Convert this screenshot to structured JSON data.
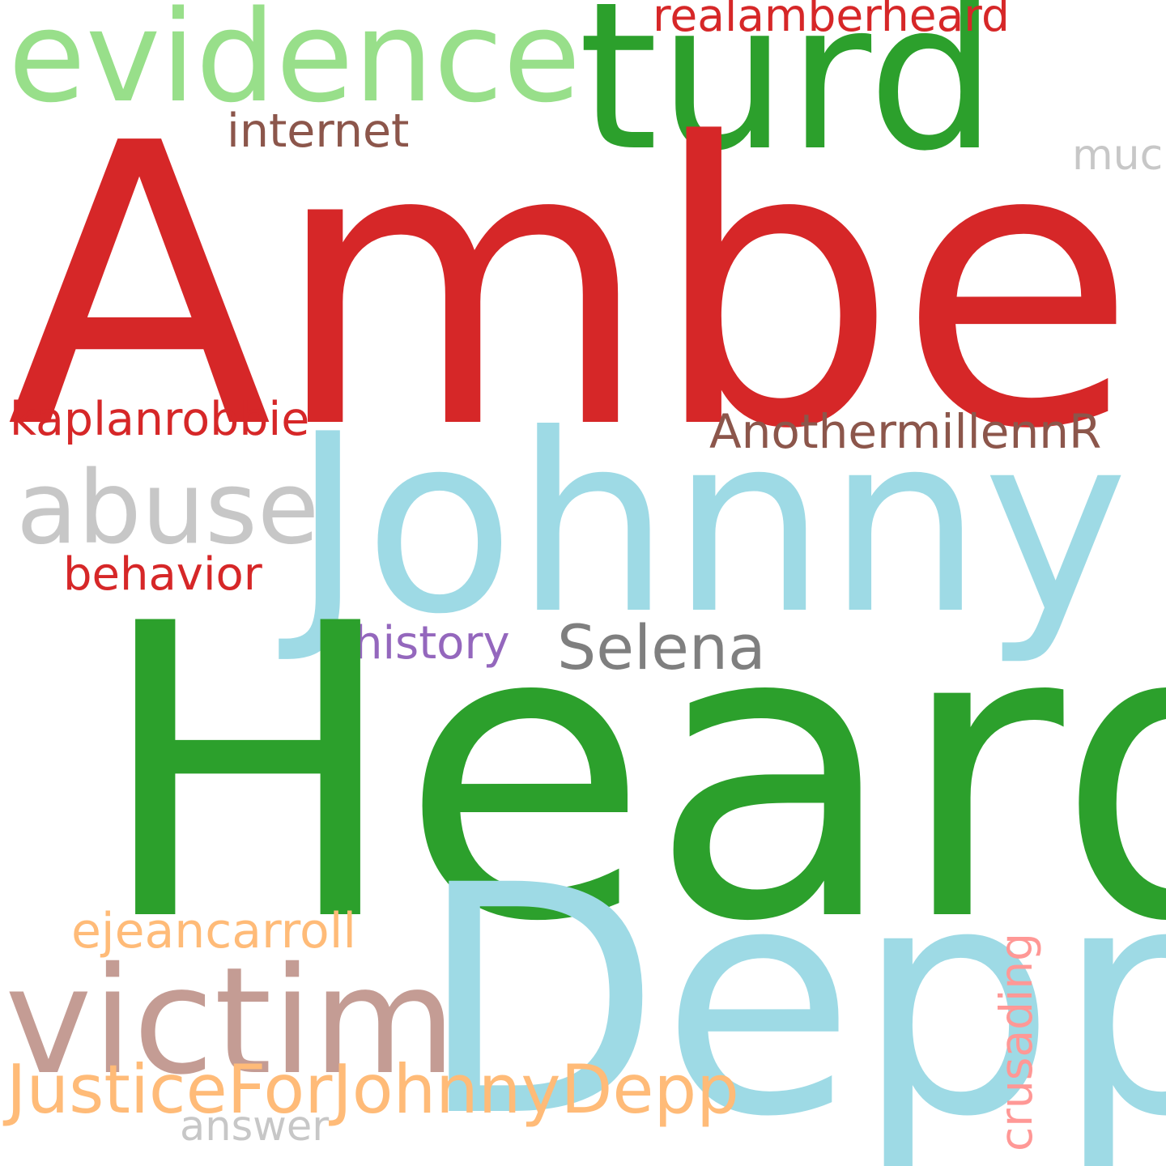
{
  "words": [
    {
      "id": "amber",
      "text": "Amber",
      "color": "#d62728"
    },
    {
      "id": "heard",
      "text": "Heard",
      "color": "#2ca02c"
    },
    {
      "id": "johnny",
      "text": "Johnny",
      "color": "#9edae5"
    },
    {
      "id": "depp",
      "text": "Depp",
      "color": "#9edae5"
    },
    {
      "id": "turd",
      "text": "turd",
      "color": "#2ca02c"
    },
    {
      "id": "evidence",
      "text": "evidence",
      "color": "#98df8a"
    },
    {
      "id": "victim",
      "text": "victim",
      "color": "#c49c94"
    },
    {
      "id": "abuse",
      "text": "abuse",
      "color": "#c7c7c7"
    },
    {
      "id": "justice",
      "text": "JusticeForJohnnyDepp",
      "color": "#ffbb78"
    },
    {
      "id": "selena",
      "text": "Selena",
      "color": "#7f7f7f"
    },
    {
      "id": "ejean",
      "text": "ejeancarroll",
      "color": "#ffbb78"
    },
    {
      "id": "anoth",
      "text": "AnothermillennR",
      "color": "#8c564b"
    },
    {
      "id": "kaplan",
      "text": "kaplanrobbie",
      "color": "#d62728"
    },
    {
      "id": "internet",
      "text": "internet",
      "color": "#8c564b"
    },
    {
      "id": "history",
      "text": "history",
      "color": "#9467bd"
    },
    {
      "id": "behavior",
      "text": "behavior",
      "color": "#d62728"
    },
    {
      "id": "realamb",
      "text": "realamberheard",
      "color": "#d62728"
    },
    {
      "id": "answer",
      "text": "answer",
      "color": "#c7c7c7"
    },
    {
      "id": "muc",
      "text": "muc",
      "color": "#c7c7c7"
    },
    {
      "id": "crusad",
      "text": "crusading",
      "color": "#ff9896",
      "orientation": "vertical"
    }
  ]
}
